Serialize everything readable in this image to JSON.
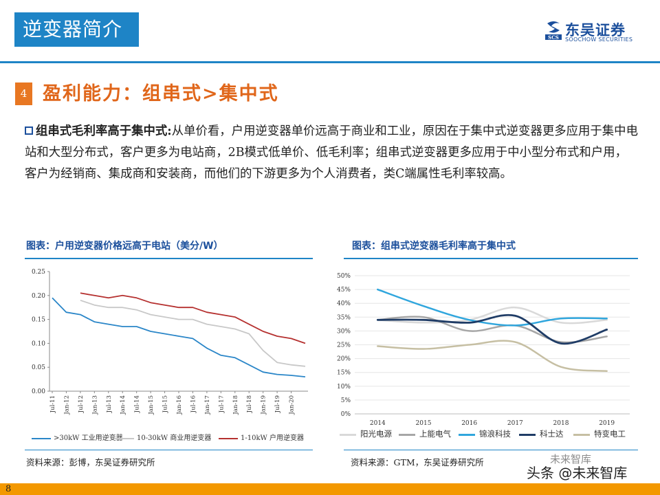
{
  "header": {
    "title": "逆变器简介",
    "logo": {
      "cn": "东吴证券",
      "en": "SOOCHOW SECURITIES",
      "mark": "SCS"
    }
  },
  "section": {
    "number": "4",
    "title": "盈利能力：组串式>集中式"
  },
  "body": {
    "lead": "组串式毛利率高于集中式:",
    "text": "从单价看，户用逆变器单价远高于商业和工业，原因在于集中式逆变器更多应用于集中电站和大型分布式，客户更多为电站商，2B模式低单价、低毛利率；组串式逆变器更多应用于中小型分布式和户用，客户为经销商、集成商和安装商，而他们的下游更多为个人消费者，类C端属性毛利率较高。"
  },
  "charts": [
    {
      "heading": "图表：户用逆变器价格远高于电站（美分/W）",
      "source": "资料来源：彭博，东吴证券研究所",
      "y_ticks": [
        "0.25",
        "0.20",
        "0.15",
        "0.10",
        "0.05",
        "0.00"
      ],
      "x_ticks": [
        "Jul-11",
        "Jan-12",
        "Jul-12",
        "Jan-13",
        "Jul-13",
        "Jan-14",
        "Jul-14",
        "Jan-15",
        "Jul-15",
        "Jan-16",
        "Jul-16",
        "Jan-17",
        "Jul-17",
        "Jan-18",
        "Jul-18",
        "Jan-19",
        "Jul-19",
        "Jan-20"
      ],
      "legend": [
        ">30kW 工业用逆变器",
        "10-30kW 商业用逆变器",
        "1-10kW 户用逆变器"
      ],
      "colors": {
        "s1": "#2a86c8",
        "s2": "#c8c8c8",
        "s3": "#b5302f"
      }
    },
    {
      "heading": "图表：组串式逆变器毛利率高于集中式",
      "source": "资料来源：GTM，东吴证券研究所",
      "y_ticks": [
        "50%",
        "45%",
        "40%",
        "35%",
        "30%",
        "25%",
        "20%",
        "15%",
        "10%",
        "5%",
        "0%"
      ],
      "x_ticks": [
        "2014",
        "2015",
        "2016",
        "2017",
        "2018",
        "2019"
      ],
      "legend": [
        "阳光电源",
        "上能电气",
        "锦浪科技",
        "科士达",
        "特变电工"
      ],
      "colors": {
        "s1": "#d9d9d9",
        "s2": "#a6a6a6",
        "s3": "#30a6dd",
        "s4": "#1f3c66",
        "s5": "#c6bfa3"
      }
    }
  ],
  "chart_data": [
    {
      "type": "line",
      "x": [
        "Jul-11",
        "Jan-12",
        "Jul-12",
        "Jan-13",
        "Jul-13",
        "Jan-14",
        "Jul-14",
        "Jan-15",
        "Jul-15",
        "Jan-16",
        "Jul-16",
        "Jan-17",
        "Jul-17",
        "Jan-18",
        "Jul-18",
        "Jan-19",
        "Jul-19",
        "Jan-20",
        "Jul-20"
      ],
      "ylim": [
        0,
        0.25
      ],
      "series": [
        {
          "name": ">30kW 工业用逆变器",
          "values": [
            0.195,
            0.165,
            0.16,
            0.145,
            0.14,
            0.135,
            0.135,
            0.125,
            0.12,
            0.115,
            0.11,
            0.09,
            0.075,
            0.07,
            0.055,
            0.04,
            0.035,
            0.033,
            0.03
          ]
        },
        {
          "name": "10-30kW 商业用逆变器",
          "values": [
            null,
            null,
            0.19,
            0.18,
            0.175,
            0.175,
            0.17,
            0.16,
            0.155,
            0.15,
            0.15,
            0.14,
            0.135,
            0.13,
            0.12,
            0.085,
            0.06,
            0.055,
            0.052
          ]
        },
        {
          "name": "1-10kW 户用逆变器",
          "values": [
            null,
            null,
            0.205,
            0.2,
            0.195,
            0.2,
            0.195,
            0.185,
            0.18,
            0.175,
            0.175,
            0.165,
            0.16,
            0.155,
            0.14,
            0.125,
            0.115,
            0.11,
            0.1
          ]
        }
      ]
    },
    {
      "type": "line",
      "x": [
        "2014",
        "2015",
        "2016",
        "2017",
        "2018",
        "2019"
      ],
      "ylim": [
        0,
        50
      ],
      "series": [
        {
          "name": "阳光电源",
          "values": [
            34,
            33,
            34,
            38.5,
            33,
            34
          ]
        },
        {
          "name": "上能电气",
          "values": [
            34,
            35,
            30,
            32,
            26,
            28
          ]
        },
        {
          "name": "锦浪科技",
          "values": [
            45,
            39,
            34,
            32,
            34.5,
            34.5
          ]
        },
        {
          "name": "科士达",
          "values": [
            34,
            34,
            33,
            35.5,
            25.5,
            30.5
          ]
        },
        {
          "name": "特变电工",
          "values": [
            24.5,
            23.5,
            25,
            26,
            17,
            15.5
          ]
        }
      ]
    }
  ],
  "footer": {
    "page": "8",
    "watermark": "头条 @未来智库",
    "watermark_bg": "未来智库"
  }
}
